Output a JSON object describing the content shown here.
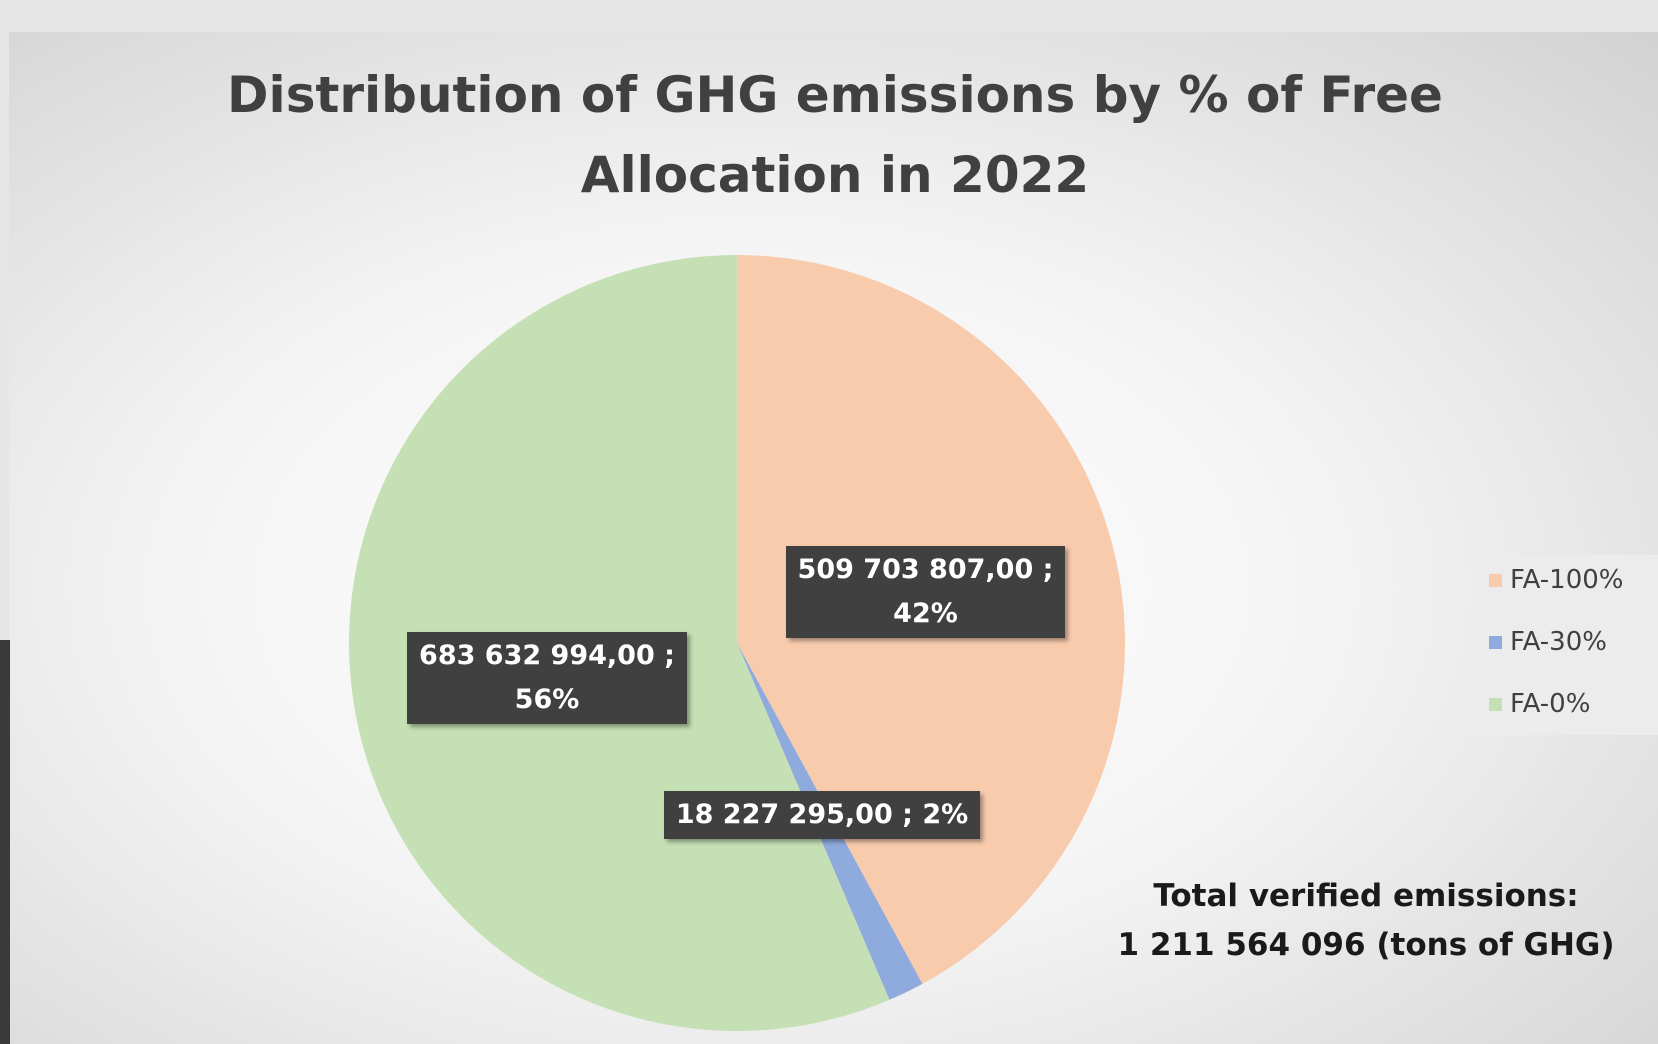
{
  "chart_data": {
    "type": "pie",
    "title": "Distribution of GHG emissions by % of Free Allocation in 2022",
    "categories": [
      "FA-100%",
      "FA-30%",
      "FA-0%"
    ],
    "values": [
      509703807,
      18227295,
      683632994
    ],
    "value_labels": [
      "509 703 807,00 ; 42%",
      "18 227 295,00 ; 2%",
      "683 632 994,00 ; 56%"
    ],
    "colors": [
      "#f8cbad",
      "#8faadc",
      "#c5e0b4"
    ],
    "legend": "right",
    "annotation": [
      "Total verified emissions:",
      "1 211 564 096 (tons of GHG)"
    ]
  }
}
